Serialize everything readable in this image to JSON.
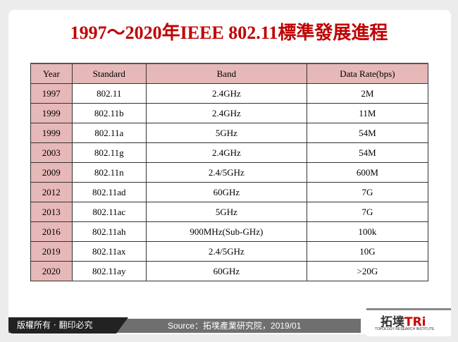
{
  "title": "1997～2020年IEEE 802.11標準發展進程",
  "table": {
    "headers": [
      "Year",
      "Standard",
      "Band",
      "Data Rate(bps)"
    ],
    "rows": [
      [
        "1997",
        "802.11",
        "2.4GHz",
        "2M"
      ],
      [
        "1999",
        "802.11b",
        "2.4GHz",
        "11M"
      ],
      [
        "1999",
        "802.11a",
        "5GHz",
        "54M"
      ],
      [
        "2003",
        "802.11g",
        "2.4GHz",
        "54M"
      ],
      [
        "2009",
        "802.11n",
        "2.4/5GHz",
        "600M"
      ],
      [
        "2012",
        "802.11ad",
        "60GHz",
        "7G"
      ],
      [
        "2013",
        "802.11ac",
        "5GHz",
        "7G"
      ],
      [
        "2016",
        "802.11ah",
        "900MHz(Sub-GHz)",
        "100k"
      ],
      [
        "2019",
        "802.11ax",
        "2.4/5GHz",
        "10G"
      ],
      [
        "2020",
        "802.11ay",
        "60GHz",
        ">20G"
      ]
    ]
  },
  "footer": {
    "copyright": "版權所有 · 翻印必究",
    "source": "Source：拓墣產業研究院，2019/01"
  },
  "logo": {
    "text_cn": "拓墣",
    "text_en": "TRi",
    "tagline": "TOPOLOGY RESEARCH INSTITUTE"
  }
}
